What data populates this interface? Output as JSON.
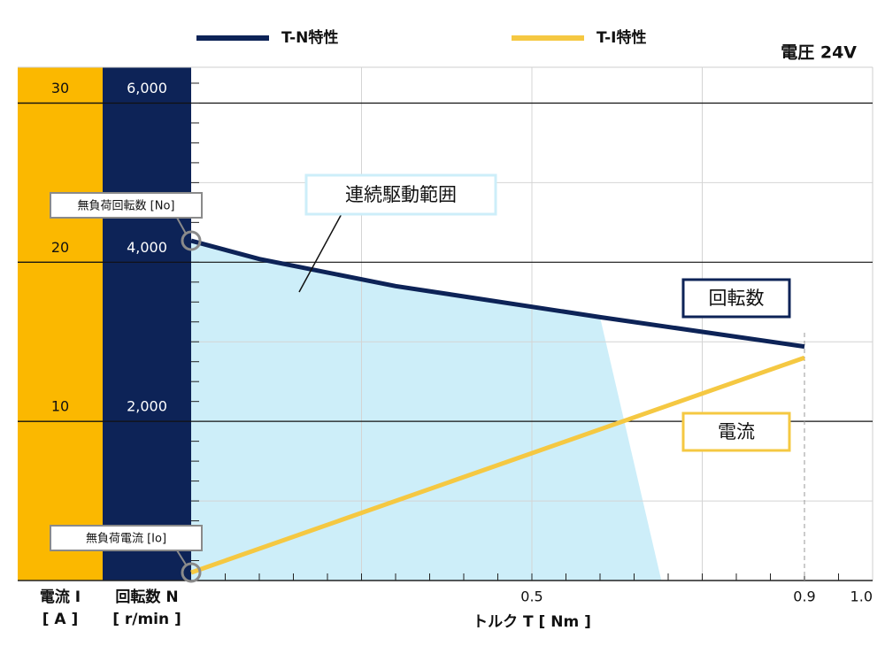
{
  "chart_data": {
    "type": "line",
    "voltage_label": "電圧 24V",
    "xlabel": "トルク T [ Nm ]",
    "ylabel": [
      "回転数 N",
      "[ r/min ]"
    ],
    "y2label": [
      "電流 I",
      "[ A ]"
    ],
    "xlim": [
      0,
      1.0
    ],
    "xticks": [
      0.5,
      0.9,
      {
        "value": 1,
        "label": "1.0"
      }
    ],
    "xgrid": [
      0.25,
      0.5,
      0.75
    ],
    "xminorticks": [
      0.05,
      0.1,
      0.15,
      0.2,
      0.25,
      0.3,
      0.35,
      0.4,
      0.45,
      0.5,
      0.55,
      0.6,
      0.65,
      0.7,
      0.75,
      0.8,
      0.85,
      0.9,
      0.95
    ],
    "ylim": [
      0,
      6450
    ],
    "yticks": [
      {
        "value": 2000,
        "label": "2,000"
      },
      {
        "value": 4000,
        "label": "4,000"
      },
      {
        "value": 6000,
        "label": "6,000"
      }
    ],
    "ygrid": [
      1000,
      3000,
      5000
    ],
    "yminorticks": [
      250,
      500,
      750,
      1000,
      1250,
      1500,
      1750,
      2000,
      2250,
      2500,
      2750,
      3000,
      3250,
      3500,
      3750,
      4000,
      4250,
      4500,
      4750,
      5000,
      5250,
      5500,
      5750,
      6000,
      6250
    ],
    "y2lim": [
      0,
      32.25
    ],
    "y2ticks": [
      10,
      20,
      30
    ],
    "series": [
      {
        "name": "T-N特性",
        "color": "#0d2357",
        "x": [
          0,
          0.1,
          0.3,
          0.6,
          0.9
        ],
        "values": [
          4270,
          4040,
          3700,
          3310,
          2940
        ]
      },
      {
        "name": "T-I特性",
        "color": "#f5c842",
        "axis": "y2",
        "x": [
          0,
          0.9
        ],
        "values": [
          0.5,
          14
        ]
      }
    ],
    "region": {
      "label": "連続駆動範囲",
      "color": "#cdeef9",
      "x": [
        0,
        0.1,
        0.3,
        0.6,
        0.69
      ],
      "values": [
        4270,
        4040,
        3700,
        3310,
        0
      ]
    },
    "annotations": {
      "no_load_speed": "無負荷回転数 [No]",
      "no_load_current": "無負荷電流 [Io]",
      "speed": "回転数",
      "current": "電流"
    }
  }
}
